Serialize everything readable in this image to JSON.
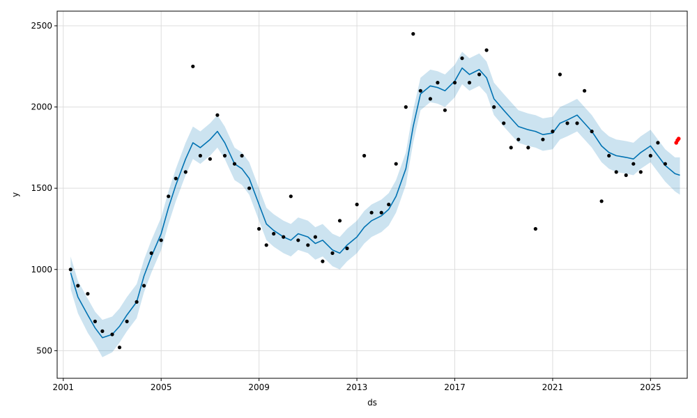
{
  "chart_data": {
    "type": "line",
    "title": "",
    "xlabel": "ds",
    "ylabel": "y",
    "xlim": [
      2000.75,
      2026.5
    ],
    "ylim": [
      330,
      2590
    ],
    "grid": true,
    "legend": "none",
    "x_ticks": [
      2001,
      2005,
      2009,
      2013,
      2017,
      2021,
      2025
    ],
    "x_tick_labels": [
      "2001",
      "2005",
      "2009",
      "2013",
      "2017",
      "2021",
      "2025"
    ],
    "y_ticks": [
      500,
      1000,
      1500,
      2000,
      2500
    ],
    "y_tick_labels": [
      "500",
      "1000",
      "1500",
      "2000",
      "2500"
    ],
    "colors": {
      "forecast_line": "#0072B2",
      "uncertainty_band": "#0072B2",
      "observed_points": "#000000",
      "recent_points": "#ff0000",
      "grid": "#dddddd"
    },
    "series": [
      {
        "role": "forecast",
        "x": [
          2001.3,
          2001.6,
          2002.0,
          2002.3,
          2002.6,
          2003.0,
          2003.3,
          2003.6,
          2004.0,
          2004.3,
          2004.6,
          2005.0,
          2005.3,
          2005.6,
          2006.0,
          2006.3,
          2006.6,
          2007.0,
          2007.3,
          2007.6,
          2008.0,
          2008.3,
          2008.6,
          2009.0,
          2009.3,
          2009.6,
          2010.0,
          2010.3,
          2010.6,
          2011.0,
          2011.3,
          2011.6,
          2012.0,
          2012.3,
          2012.6,
          2013.0,
          2013.3,
          2013.6,
          2014.0,
          2014.3,
          2014.6,
          2015.0,
          2015.3,
          2015.6,
          2016.0,
          2016.3,
          2016.6,
          2017.0,
          2017.3,
          2017.6,
          2018.0,
          2018.3,
          2018.6,
          2019.0,
          2019.3,
          2019.6,
          2020.0,
          2020.3,
          2020.6,
          2021.0,
          2021.3,
          2021.6,
          2022.0,
          2022.3,
          2022.6,
          2023.0,
          2023.3,
          2023.6,
          2024.0,
          2024.3,
          2024.6,
          2025.0,
          2025.3,
          2025.6,
          2026.0,
          2026.2
        ],
        "y": [
          980,
          830,
          720,
          640,
          580,
          600,
          650,
          720,
          800,
          960,
          1080,
          1220,
          1380,
          1520,
          1680,
          1780,
          1750,
          1800,
          1850,
          1780,
          1650,
          1620,
          1560,
          1400,
          1280,
          1240,
          1200,
          1180,
          1220,
          1200,
          1160,
          1180,
          1120,
          1100,
          1150,
          1200,
          1260,
          1300,
          1330,
          1370,
          1450,
          1620,
          1880,
          2080,
          2130,
          2120,
          2100,
          2160,
          2240,
          2200,
          2230,
          2180,
          2050,
          1980,
          1930,
          1880,
          1860,
          1850,
          1830,
          1840,
          1900,
          1920,
          1950,
          1900,
          1850,
          1760,
          1720,
          1700,
          1690,
          1680,
          1720,
          1760,
          1700,
          1640,
          1590,
          1580
        ],
        "lower": [
          880,
          730,
          610,
          540,
          460,
          490,
          550,
          620,
          700,
          860,
          980,
          1120,
          1280,
          1420,
          1580,
          1680,
          1650,
          1700,
          1750,
          1680,
          1550,
          1520,
          1460,
          1300,
          1180,
          1140,
          1100,
          1080,
          1120,
          1100,
          1060,
          1080,
          1020,
          1000,
          1050,
          1100,
          1160,
          1200,
          1230,
          1270,
          1350,
          1520,
          1780,
          1980,
          2030,
          2020,
          2000,
          2060,
          2140,
          2100,
          2130,
          2080,
          1950,
          1880,
          1830,
          1780,
          1760,
          1750,
          1730,
          1740,
          1800,
          1820,
          1850,
          1800,
          1750,
          1660,
          1620,
          1600,
          1590,
          1580,
          1620,
          1660,
          1600,
          1540,
          1480,
          1460
        ],
        "upper": [
          1080,
          930,
          820,
          740,
          690,
          710,
          760,
          830,
          910,
          1060,
          1180,
          1320,
          1480,
          1620,
          1780,
          1880,
          1850,
          1900,
          1950,
          1880,
          1750,
          1720,
          1660,
          1500,
          1380,
          1340,
          1300,
          1280,
          1320,
          1300,
          1260,
          1280,
          1220,
          1200,
          1250,
          1300,
          1360,
          1400,
          1430,
          1470,
          1550,
          1720,
          1980,
          2180,
          2230,
          2220,
          2200,
          2260,
          2340,
          2300,
          2330,
          2280,
          2150,
          2080,
          2030,
          1980,
          1960,
          1950,
          1930,
          1940,
          2000,
          2020,
          2050,
          2000,
          1950,
          1860,
          1820,
          1800,
          1790,
          1780,
          1820,
          1860,
          1800,
          1740,
          1690,
          1690
        ]
      },
      {
        "role": "observed",
        "x": [
          2001.3,
          2001.6,
          2002.0,
          2002.3,
          2002.6,
          2003.0,
          2003.3,
          2003.6,
          2004.0,
          2004.3,
          2004.6,
          2005.0,
          2005.3,
          2005.6,
          2006.0,
          2006.3,
          2006.6,
          2007.0,
          2007.3,
          2007.6,
          2008.0,
          2008.3,
          2008.6,
          2009.0,
          2009.3,
          2009.6,
          2010.0,
          2010.3,
          2010.6,
          2011.0,
          2011.3,
          2011.6,
          2012.0,
          2012.3,
          2012.6,
          2013.0,
          2013.3,
          2013.6,
          2014.0,
          2014.3,
          2014.6,
          2015.0,
          2015.3,
          2015.6,
          2016.0,
          2016.3,
          2016.6,
          2017.0,
          2017.3,
          2017.6,
          2018.0,
          2018.3,
          2018.6,
          2019.0,
          2019.3,
          2019.6,
          2020.0,
          2020.3,
          2020.6,
          2021.0,
          2021.3,
          2021.6,
          2022.0,
          2022.3,
          2022.6,
          2023.0,
          2023.3,
          2023.6,
          2024.0,
          2024.3,
          2024.6,
          2025.0,
          2025.3,
          2025.6
        ],
        "y": [
          1000,
          900,
          850,
          680,
          620,
          600,
          520,
          680,
          800,
          900,
          1100,
          1180,
          1450,
          1560,
          1600,
          2250,
          1700,
          1680,
          1950,
          1700,
          1650,
          1700,
          1500,
          1250,
          1150,
          1220,
          1200,
          1450,
          1180,
          1150,
          1200,
          1050,
          1100,
          1300,
          1130,
          1400,
          1700,
          1350,
          1350,
          1400,
          1650,
          2000,
          2450,
          2100,
          2050,
          2150,
          1980,
          2150,
          2300,
          2150,
          2200,
          2350,
          2000,
          1900,
          1750,
          1800,
          1750,
          1250,
          1800,
          1850,
          2200,
          1900,
          1900,
          2100,
          1850,
          1420,
          1700,
          1600,
          1580,
          1650,
          1600,
          1700,
          1780,
          1650
        ]
      },
      {
        "role": "recent",
        "x": [
          2026.05,
          2026.1,
          2026.15
        ],
        "y": [
          1780,
          1795,
          1805
        ]
      }
    ]
  }
}
